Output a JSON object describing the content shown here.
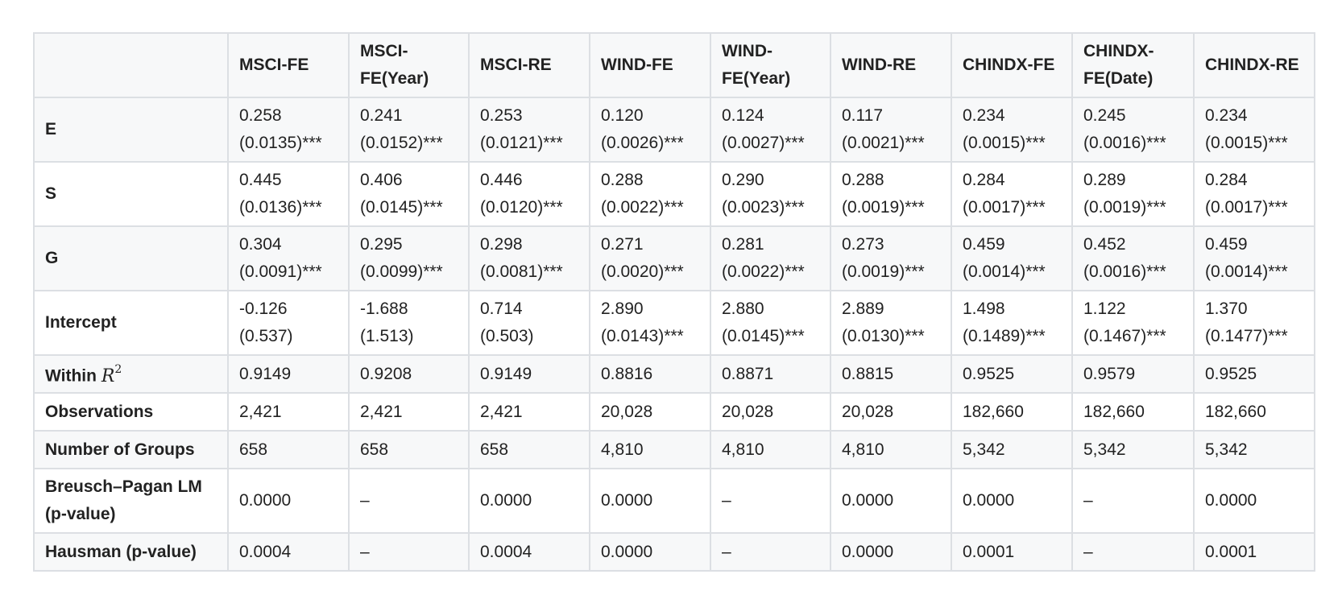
{
  "table": {
    "headers": [
      "",
      "MSCI-FE",
      "MSCI-FE(Year)",
      "MSCI-RE",
      "WIND-FE",
      "WIND-FE(Year)",
      "WIND-RE",
      "CHINDX-FE",
      "CHINDX-FE(Date)",
      "CHINDX-RE"
    ],
    "rows": [
      {
        "label": "E",
        "cells": [
          [
            "0.258",
            "(0.0135)***"
          ],
          [
            "0.241",
            "(0.0152)***"
          ],
          [
            "0.253",
            "(0.0121)***"
          ],
          [
            "0.120",
            "(0.0026)***"
          ],
          [
            "0.124",
            "(0.0027)***"
          ],
          [
            "0.117",
            "(0.0021)***"
          ],
          [
            "0.234",
            "(0.0015)***"
          ],
          [
            "0.245",
            "(0.0016)***"
          ],
          [
            "0.234",
            "(0.0015)***"
          ]
        ]
      },
      {
        "label": "S",
        "cells": [
          [
            "0.445",
            "(0.0136)***"
          ],
          [
            "0.406",
            "(0.0145)***"
          ],
          [
            "0.446",
            "(0.0120)***"
          ],
          [
            "0.288",
            "(0.0022)***"
          ],
          [
            "0.290",
            "(0.0023)***"
          ],
          [
            "0.288",
            "(0.0019)***"
          ],
          [
            "0.284",
            "(0.0017)***"
          ],
          [
            "0.289",
            "(0.0019)***"
          ],
          [
            "0.284",
            "(0.0017)***"
          ]
        ]
      },
      {
        "label": "G",
        "cells": [
          [
            "0.304",
            "(0.0091)***"
          ],
          [
            "0.295",
            "(0.0099)***"
          ],
          [
            "0.298",
            "(0.0081)***"
          ],
          [
            "0.271",
            "(0.0020)***"
          ],
          [
            "0.281",
            "(0.0022)***"
          ],
          [
            "0.273",
            "(0.0019)***"
          ],
          [
            "0.459",
            "(0.0014)***"
          ],
          [
            "0.452",
            "(0.0016)***"
          ],
          [
            "0.459",
            "(0.0014)***"
          ]
        ]
      },
      {
        "label": "Intercept",
        "cells": [
          [
            "-0.126",
            "(0.537)"
          ],
          [
            "-1.688",
            "(1.513)"
          ],
          [
            "0.714",
            "(0.503)"
          ],
          [
            "2.890",
            "(0.0143)***"
          ],
          [
            "2.880",
            "(0.0145)***"
          ],
          [
            "2.889",
            "(0.0130)***"
          ],
          [
            "1.498",
            "(0.1489)***"
          ],
          [
            "1.122",
            "(0.1467)***"
          ],
          [
            "1.370",
            "(0.1477)***"
          ]
        ]
      },
      {
        "label": "Within",
        "label_math": "R",
        "label_sup": "2",
        "cells": [
          [
            "0.9149"
          ],
          [
            "0.9208"
          ],
          [
            "0.9149"
          ],
          [
            "0.8816"
          ],
          [
            "0.8871"
          ],
          [
            "0.8815"
          ],
          [
            "0.9525"
          ],
          [
            "0.9579"
          ],
          [
            "0.9525"
          ]
        ]
      },
      {
        "label": "Observations",
        "cells": [
          [
            "2,421"
          ],
          [
            "2,421"
          ],
          [
            "2,421"
          ],
          [
            "20,028"
          ],
          [
            "20,028"
          ],
          [
            "20,028"
          ],
          [
            "182,660"
          ],
          [
            "182,660"
          ],
          [
            "182,660"
          ]
        ]
      },
      {
        "label": "Number of Groups",
        "cells": [
          [
            "658"
          ],
          [
            "658"
          ],
          [
            "658"
          ],
          [
            "4,810"
          ],
          [
            "4,810"
          ],
          [
            "4,810"
          ],
          [
            "5,342"
          ],
          [
            "5,342"
          ],
          [
            "5,342"
          ]
        ]
      },
      {
        "label": "Breusch–Pagan LM (p-value)",
        "cells": [
          [
            "0.0000"
          ],
          [
            "–"
          ],
          [
            "0.0000"
          ],
          [
            "0.0000"
          ],
          [
            "–"
          ],
          [
            "0.0000"
          ],
          [
            "0.0000"
          ],
          [
            "–"
          ],
          [
            "0.0000"
          ]
        ]
      },
      {
        "label": "Hausman (p-value)",
        "cells": [
          [
            "0.0004"
          ],
          [
            "–"
          ],
          [
            "0.0004"
          ],
          [
            "0.0000"
          ],
          [
            "–"
          ],
          [
            "0.0000"
          ],
          [
            "0.0001"
          ],
          [
            "–"
          ],
          [
            "0.0001"
          ]
        ]
      }
    ]
  }
}
